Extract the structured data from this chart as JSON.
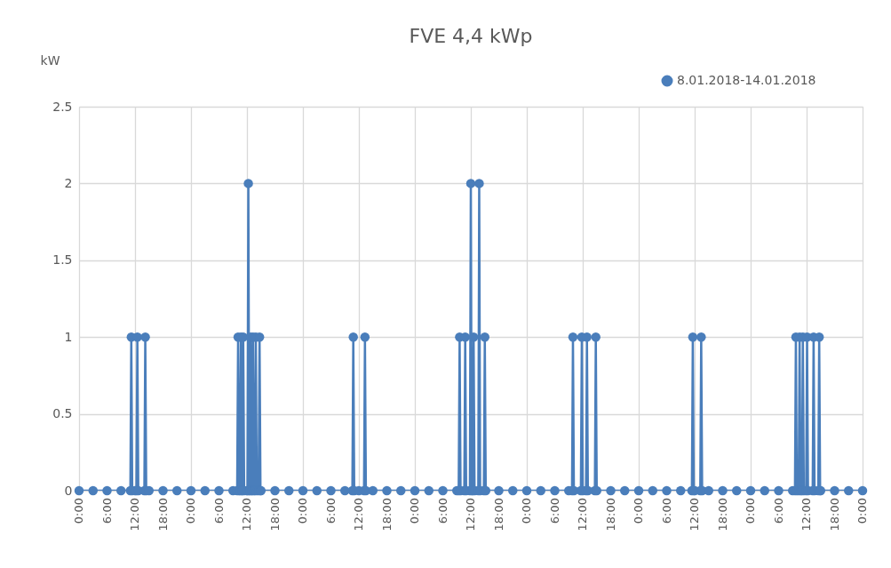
{
  "chart_data": {
    "type": "line",
    "title": "FVE 4,4 kWp",
    "ylabel": "kW",
    "xlim": [
      "2018-01-08T00:00",
      "2018-01-15T00:00"
    ],
    "ylim": [
      0,
      2.5
    ],
    "xticks": [
      {
        "value": "2018-01-08T00:00",
        "label": "0:00"
      },
      {
        "value": "2018-01-08T06:00",
        "label": "6:00"
      },
      {
        "value": "2018-01-08T12:00",
        "label": "12:00"
      },
      {
        "value": "2018-01-08T18:00",
        "label": "18:00"
      },
      {
        "value": "2018-01-09T00:00",
        "label": "0:00"
      },
      {
        "value": "2018-01-09T06:00",
        "label": "6:00"
      },
      {
        "value": "2018-01-09T12:00",
        "label": "12:00"
      },
      {
        "value": "2018-01-09T18:00",
        "label": "18:00"
      },
      {
        "value": "2018-01-10T00:00",
        "label": "0:00"
      },
      {
        "value": "2018-01-10T06:00",
        "label": "6:00"
      },
      {
        "value": "2018-01-10T12:00",
        "label": "12:00"
      },
      {
        "value": "2018-01-10T18:00",
        "label": "18:00"
      },
      {
        "value": "2018-01-11T00:00",
        "label": "0:00"
      },
      {
        "value": "2018-01-11T06:00",
        "label": "6:00"
      },
      {
        "value": "2018-01-11T12:00",
        "label": "12:00"
      },
      {
        "value": "2018-01-11T18:00",
        "label": "18:00"
      },
      {
        "value": "2018-01-12T00:00",
        "label": "0:00"
      },
      {
        "value": "2018-01-12T06:00",
        "label": "6:00"
      },
      {
        "value": "2018-01-12T12:00",
        "label": "12:00"
      },
      {
        "value": "2018-01-12T18:00",
        "label": "18:00"
      },
      {
        "value": "2018-01-13T00:00",
        "label": "0:00"
      },
      {
        "value": "2018-01-13T06:00",
        "label": "6:00"
      },
      {
        "value": "2018-01-13T12:00",
        "label": "12:00"
      },
      {
        "value": "2018-01-13T18:00",
        "label": "18:00"
      },
      {
        "value": "2018-01-14T00:00",
        "label": "0:00"
      },
      {
        "value": "2018-01-14T06:00",
        "label": "6:00"
      },
      {
        "value": "2018-01-14T12:00",
        "label": "12:00"
      },
      {
        "value": "2018-01-14T18:00",
        "label": "18:00"
      },
      {
        "value": "2018-01-15T00:00",
        "label": "0:00"
      }
    ],
    "yticks": [
      0,
      0.5,
      1,
      1.5,
      2,
      2.5
    ],
    "grid": true,
    "legend": "top right",
    "marker": "circle",
    "line_style": "solid",
    "series": [
      {
        "name": "8.01.2018-14.01.2018",
        "color": "#4a7ebb",
        "x": [
          "2018-01-08T00:00",
          "2018-01-08T03:00",
          "2018-01-08T06:00",
          "2018-01-08T09:00",
          "2018-01-08T11:00",
          "2018-01-08T11:12",
          "2018-01-08T11:24",
          "2018-01-08T12:00",
          "2018-01-08T12:18",
          "2018-01-08T12:30",
          "2018-01-08T12:42",
          "2018-01-08T14:00",
          "2018-01-08T14:12",
          "2018-01-08T14:24",
          "2018-01-08T15:00",
          "2018-01-08T18:00",
          "2018-01-08T21:00",
          "2018-01-09T00:00",
          "2018-01-09T03:00",
          "2018-01-09T06:00",
          "2018-01-09T09:00",
          "2018-01-09T09:54",
          "2018-01-09T10:06",
          "2018-01-09T10:18",
          "2018-01-09T10:30",
          "2018-01-09T10:42",
          "2018-01-09T10:54",
          "2018-01-09T11:00",
          "2018-01-09T11:12",
          "2018-01-09T11:24",
          "2018-01-09T12:00",
          "2018-01-09T12:06",
          "2018-01-09T12:18",
          "2018-01-09T12:30",
          "2018-01-09T12:36",
          "2018-01-09T12:48",
          "2018-01-09T13:00",
          "2018-01-09T13:06",
          "2018-01-09T13:18",
          "2018-01-09T13:30",
          "2018-01-09T13:42",
          "2018-01-09T13:54",
          "2018-01-09T14:06",
          "2018-01-09T14:30",
          "2018-01-09T14:42",
          "2018-01-09T14:54",
          "2018-01-09T15:00",
          "2018-01-09T18:00",
          "2018-01-09T21:00",
          "2018-01-10T00:00",
          "2018-01-10T03:00",
          "2018-01-10T06:00",
          "2018-01-10T09:00",
          "2018-01-10T10:36",
          "2018-01-10T10:48",
          "2018-01-10T11:00",
          "2018-01-10T12:00",
          "2018-01-10T13:06",
          "2018-01-10T13:18",
          "2018-01-10T13:30",
          "2018-01-10T15:00",
          "2018-01-10T18:00",
          "2018-01-10T21:00",
          "2018-01-11T00:00",
          "2018-01-11T03:00",
          "2018-01-11T06:00",
          "2018-01-11T09:00",
          "2018-01-11T09:24",
          "2018-01-11T09:36",
          "2018-01-11T09:48",
          "2018-01-11T10:36",
          "2018-01-11T10:48",
          "2018-01-11T11:00",
          "2018-01-11T11:48",
          "2018-01-11T12:00",
          "2018-01-11T12:12",
          "2018-01-11T12:24",
          "2018-01-11T12:36",
          "2018-01-11T12:48",
          "2018-01-11T13:36",
          "2018-01-11T13:48",
          "2018-01-11T14:00",
          "2018-01-11T14:48",
          "2018-01-11T15:00",
          "2018-01-11T15:12",
          "2018-01-11T18:00",
          "2018-01-11T21:00",
          "2018-01-12T00:00",
          "2018-01-12T03:00",
          "2018-01-12T06:00",
          "2018-01-12T09:00",
          "2018-01-12T09:42",
          "2018-01-12T09:54",
          "2018-01-12T10:06",
          "2018-01-12T11:36",
          "2018-01-12T11:48",
          "2018-01-12T12:00",
          "2018-01-12T12:42",
          "2018-01-12T12:54",
          "2018-01-12T13:06",
          "2018-01-12T14:36",
          "2018-01-12T14:48",
          "2018-01-12T15:00",
          "2018-01-12T18:00",
          "2018-01-12T21:00",
          "2018-01-13T00:00",
          "2018-01-13T03:00",
          "2018-01-13T06:00",
          "2018-01-13T09:00",
          "2018-01-13T11:24",
          "2018-01-13T11:36",
          "2018-01-13T11:48",
          "2018-01-13T12:00",
          "2018-01-13T13:12",
          "2018-01-13T13:24",
          "2018-01-13T13:36",
          "2018-01-13T15:00",
          "2018-01-13T18:00",
          "2018-01-13T21:00",
          "2018-01-14T00:00",
          "2018-01-14T03:00",
          "2018-01-14T06:00",
          "2018-01-14T09:00",
          "2018-01-14T09:30",
          "2018-01-14T09:42",
          "2018-01-14T09:54",
          "2018-01-14T10:18",
          "2018-01-14T10:30",
          "2018-01-14T10:42",
          "2018-01-14T11:00",
          "2018-01-14T11:12",
          "2018-01-14T11:24",
          "2018-01-14T11:54",
          "2018-01-14T12:06",
          "2018-01-14T12:18",
          "2018-01-14T13:18",
          "2018-01-14T13:30",
          "2018-01-14T13:42",
          "2018-01-14T14:30",
          "2018-01-14T14:42",
          "2018-01-14T14:54",
          "2018-01-14T15:00",
          "2018-01-14T18:00",
          "2018-01-14T21:00",
          "2018-01-15T00:00"
        ],
        "values": [
          0,
          0,
          0,
          0,
          0,
          1,
          0,
          0,
          0,
          1,
          0,
          0,
          1,
          0,
          0,
          0,
          0,
          0,
          0,
          0,
          0,
          0,
          1,
          0,
          0,
          1,
          0,
          0,
          1,
          0,
          0,
          0,
          2,
          0,
          0,
          1,
          0,
          0,
          1,
          0,
          0,
          1,
          0,
          0,
          1,
          0,
          0,
          0,
          0,
          0,
          0,
          0,
          0,
          0,
          1,
          0,
          0,
          0,
          1,
          0,
          0,
          0,
          0,
          0,
          0,
          0,
          0,
          0,
          1,
          0,
          0,
          1,
          0,
          0,
          2,
          0,
          0,
          1,
          0,
          0,
          2,
          0,
          0,
          1,
          0,
          0,
          0,
          0,
          0,
          0,
          0,
          0,
          1,
          0,
          0,
          1,
          0,
          0,
          1,
          0,
          0,
          1,
          0,
          0,
          0,
          0,
          0,
          0,
          0,
          0,
          1,
          0,
          0,
          0,
          1,
          0,
          0,
          0,
          0,
          0,
          0,
          0,
          0,
          0,
          1,
          0,
          0,
          1,
          0,
          0,
          1,
          0,
          0,
          1,
          0,
          0,
          1,
          0,
          0,
          1,
          0,
          0,
          0,
          0,
          0
        ]
      }
    ]
  }
}
